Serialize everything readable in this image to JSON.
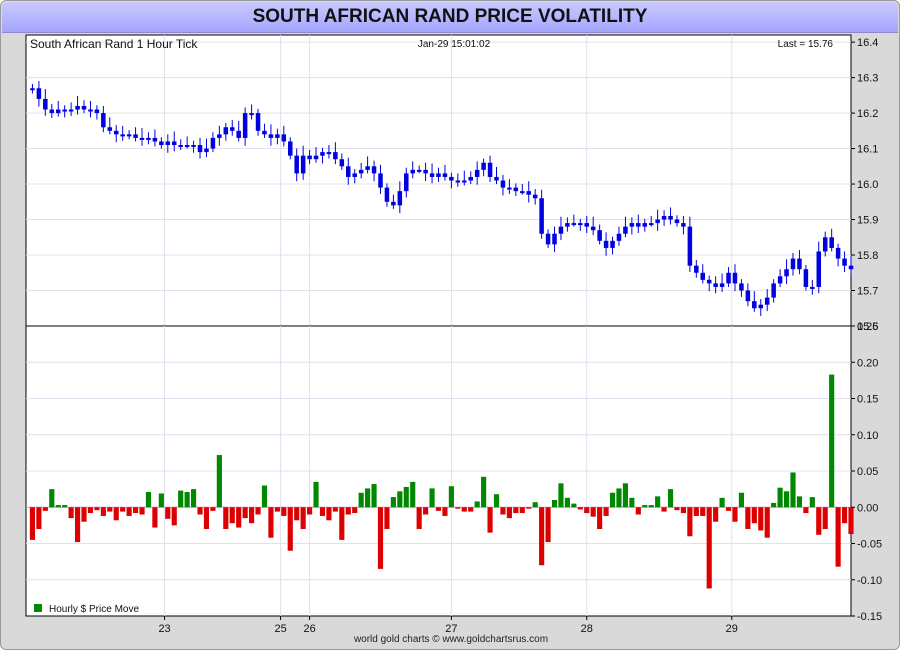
{
  "title": "SOUTH AFRICAN RAND PRICE VOLATILITY",
  "footer": "world gold charts © www.goldchartsrus.com",
  "colors": {
    "candle": "#0000e0",
    "up": "#008800",
    "down": "#dd0000",
    "grid": "#e0e0ee",
    "title_bg": "#b4b4ff"
  },
  "chart_data": [
    {
      "type": "line",
      "subtype": "candlestick",
      "header_left": "South African Rand 1 Hour Tick",
      "header_center": "Jan-29  15:01:02",
      "header_right": "Last = 15.76",
      "ylim": [
        15.6,
        16.42
      ],
      "yticks": [
        "15.6",
        "15.7",
        "15.8",
        "15.9",
        "16.0",
        "16.1",
        "16.2",
        "16.3",
        "16.4"
      ],
      "xticks": [
        "23",
        "25",
        "26",
        "27",
        "28",
        "29"
      ],
      "x_range": [
        0,
        128
      ],
      "tick_positions": [
        21.5,
        39.5,
        44,
        66,
        87,
        109.5
      ],
      "grid": true,
      "values": [
        16.27,
        16.24,
        16.21,
        16.2,
        16.21,
        16.21,
        16.21,
        16.22,
        16.21,
        16.21,
        16.2,
        16.16,
        16.15,
        16.14,
        16.14,
        16.14,
        16.13,
        16.13,
        16.13,
        16.12,
        16.11,
        16.12,
        16.11,
        16.11,
        16.11,
        16.11,
        16.09,
        16.1,
        16.13,
        16.14,
        16.16,
        16.15,
        16.13,
        16.2,
        16.2,
        16.15,
        16.14,
        16.13,
        16.14,
        16.12,
        16.08,
        16.03,
        16.08,
        16.07,
        16.08,
        16.09,
        16.09,
        16.07,
        16.05,
        16.02,
        16.03,
        16.04,
        16.05,
        16.03,
        15.99,
        15.95,
        15.94,
        15.98,
        16.03,
        16.04,
        16.04,
        16.03,
        16.02,
        16.03,
        16.02,
        16.01,
        16.01,
        16.01,
        16.02,
        16.04,
        16.06,
        16.02,
        16.01,
        15.99,
        15.99,
        15.98,
        15.98,
        15.97,
        15.96,
        15.86,
        15.83,
        15.86,
        15.88,
        15.89,
        15.89,
        15.89,
        15.88,
        15.87,
        15.84,
        15.82,
        15.84,
        15.86,
        15.88,
        15.89,
        15.88,
        15.89,
        15.89,
        15.9,
        15.91,
        15.9,
        15.89,
        15.88,
        15.77,
        15.75,
        15.73,
        15.72,
        15.71,
        15.72,
        15.75,
        15.72,
        15.7,
        15.67,
        15.65,
        15.66,
        15.68,
        15.72,
        15.74,
        15.76,
        15.79,
        15.76,
        15.71,
        15.71,
        15.81,
        15.85,
        15.82,
        15.79,
        15.77,
        15.76
      ]
    },
    {
      "type": "bar",
      "legend": "Hourly $ Price Move",
      "ylim": [
        -0.15,
        0.25
      ],
      "yticks": [
        "0.25",
        "0.20",
        "0.15",
        "0.10",
        "0.05",
        "0.00",
        "-0.05",
        "-0.10",
        "-0.15"
      ],
      "xticks": [
        "23",
        "25",
        "26",
        "27",
        "28",
        "29"
      ],
      "x_range": [
        0,
        128
      ],
      "tick_positions": [
        21.5,
        39.5,
        44,
        66,
        87,
        109.5
      ],
      "grid": true,
      "values": [
        -0.045,
        -0.03,
        -0.005,
        0.025,
        0.003,
        0.003,
        -0.015,
        -0.048,
        -0.02,
        -0.008,
        -0.004,
        -0.012,
        -0.006,
        -0.018,
        -0.006,
        -0.012,
        -0.008,
        -0.01,
        0.021,
        -0.028,
        0.019,
        -0.016,
        -0.025,
        0.023,
        0.021,
        0.025,
        -0.01,
        -0.03,
        -0.005,
        0.072,
        -0.03,
        -0.022,
        -0.028,
        -0.015,
        -0.022,
        -0.01,
        0.03,
        -0.042,
        -0.006,
        -0.012,
        -0.06,
        -0.018,
        -0.03,
        -0.01,
        0.035,
        -0.012,
        -0.018,
        -0.006,
        -0.045,
        -0.01,
        -0.008,
        0.02,
        0.026,
        0.032,
        -0.085,
        -0.03,
        0.014,
        0.022,
        0.028,
        0.035,
        -0.03,
        -0.01,
        0.026,
        -0.005,
        -0.012,
        0.029,
        -0.002,
        -0.006,
        -0.006,
        0.008,
        0.042,
        -0.035,
        0.018,
        -0.01,
        -0.015,
        -0.008,
        -0.008,
        -0.002,
        0.007,
        -0.08,
        -0.048,
        0.01,
        0.033,
        0.013,
        0.005,
        -0.003,
        -0.008,
        -0.013,
        -0.03,
        -0.012,
        0.02,
        0.026,
        0.033,
        0.013,
        -0.01,
        0.003,
        0.003,
        0.015,
        -0.006,
        0.025,
        -0.004,
        -0.008,
        -0.04,
        -0.012,
        -0.012,
        -0.112,
        -0.02,
        0.013,
        -0.005,
        -0.02,
        0.02,
        -0.03,
        -0.022,
        -0.032,
        -0.042,
        0.006,
        0.027,
        0.022,
        0.048,
        0.015,
        -0.008,
        0.014,
        -0.038,
        -0.03,
        0.183,
        -0.082,
        -0.022,
        -0.037
      ]
    }
  ]
}
